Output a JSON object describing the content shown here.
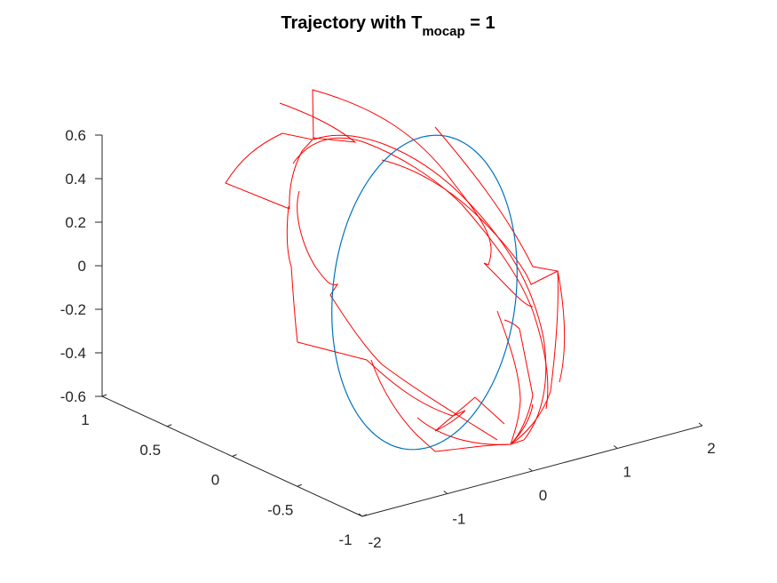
{
  "chart_data": {
    "type": "line3d",
    "title": {
      "main": "Trajectory with T",
      "subscript": "mocap",
      "suffix": " = 1"
    },
    "xlabel": "",
    "ylabel": "",
    "zlabel": "",
    "x_ticks": [
      "-2",
      "-1",
      "0",
      "1",
      "2"
    ],
    "y_ticks": [
      "-1",
      "-0.5",
      "0",
      "0.5",
      "1"
    ],
    "z_ticks": [
      "-0.6",
      "-0.4",
      "-0.2",
      "0",
      "0.2",
      "0.4",
      "0.6"
    ],
    "xlim": [
      -2,
      2
    ],
    "ylim": [
      -1,
      1
    ],
    "zlim": [
      -0.6,
      0.6
    ],
    "grid": false,
    "series": [
      {
        "color": "#0072BD",
        "description": "reference ellipse trajectory",
        "x": [
          2.0,
          1.9,
          1.62,
          1.18,
          0.62,
          0.0,
          -0.62,
          -1.18,
          -1.62,
          -1.9,
          -2.0,
          -1.9,
          -1.62,
          -1.18,
          -0.62,
          0.0,
          0.62,
          1.18,
          1.62,
          1.9,
          2.0
        ],
        "y": [
          0.0,
          0.31,
          0.59,
          0.81,
          0.95,
          1.0,
          0.95,
          0.81,
          0.59,
          0.31,
          0.0,
          -0.31,
          -0.59,
          -0.81,
          -0.95,
          -1.0,
          -0.95,
          -0.81,
          -0.59,
          -0.31,
          0.0
        ],
        "z": [
          0.0,
          0.19,
          0.35,
          0.49,
          0.57,
          0.6,
          0.57,
          0.49,
          0.35,
          0.19,
          0.0,
          -0.19,
          -0.35,
          -0.49,
          -0.57,
          -0.6,
          -0.57,
          -0.49,
          -0.35,
          -0.19,
          0.0
        ]
      },
      {
        "color": "#FF0000",
        "description": "tracking trajectory segments",
        "x": [],
        "y": [],
        "z": []
      }
    ]
  }
}
